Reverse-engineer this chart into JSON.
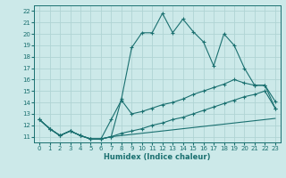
{
  "title": "",
  "xlabel": "Humidex (Indice chaleur)",
  "xlim": [
    -0.5,
    23.5
  ],
  "ylim": [
    10.5,
    22.5
  ],
  "xticks": [
    0,
    1,
    2,
    3,
    4,
    5,
    6,
    7,
    8,
    9,
    10,
    11,
    12,
    13,
    14,
    15,
    16,
    17,
    18,
    19,
    20,
    21,
    22,
    23
  ],
  "yticks": [
    11,
    12,
    13,
    14,
    15,
    16,
    17,
    18,
    19,
    20,
    21,
    22
  ],
  "bg_color": "#cce9e9",
  "grid_color": "#b0d4d4",
  "line_color": "#1a7070",
  "lines": [
    {
      "x": [
        0,
        1,
        2,
        3,
        4,
        5,
        6,
        7,
        8,
        9,
        10,
        11,
        12,
        13,
        14,
        15,
        16,
        17,
        18,
        19,
        20,
        21,
        22,
        23
      ],
      "y": [
        12.5,
        11.7,
        11.1,
        11.5,
        11.1,
        10.8,
        10.8,
        11.0,
        14.3,
        18.8,
        20.1,
        20.1,
        21.8,
        20.1,
        21.3,
        20.2,
        19.3,
        17.2,
        20.0,
        19.0,
        17.0,
        15.5,
        15.5,
        14.1
      ],
      "marker": true
    },
    {
      "x": [
        0,
        1,
        2,
        3,
        4,
        5,
        6,
        7,
        8,
        9,
        10,
        11,
        12,
        13,
        14,
        15,
        16,
        17,
        18,
        19,
        20,
        21,
        22,
        23
      ],
      "y": [
        12.5,
        11.7,
        11.1,
        11.5,
        11.1,
        10.8,
        10.8,
        12.5,
        14.2,
        13.0,
        13.2,
        13.5,
        13.8,
        14.0,
        14.3,
        14.7,
        15.0,
        15.3,
        15.6,
        16.0,
        15.7,
        15.5,
        15.5,
        13.5
      ],
      "marker": true
    },
    {
      "x": [
        0,
        1,
        2,
        3,
        4,
        5,
        6,
        7,
        8,
        9,
        10,
        11,
        12,
        13,
        14,
        15,
        16,
        17,
        18,
        19,
        20,
        21,
        22,
        23
      ],
      "y": [
        12.5,
        11.7,
        11.1,
        11.5,
        11.1,
        10.8,
        10.8,
        11.0,
        11.3,
        11.5,
        11.7,
        12.0,
        12.2,
        12.5,
        12.7,
        13.0,
        13.3,
        13.6,
        13.9,
        14.2,
        14.5,
        14.7,
        15.0,
        13.5
      ],
      "marker": true
    },
    {
      "x": [
        0,
        1,
        2,
        3,
        4,
        5,
        6,
        7,
        8,
        9,
        10,
        11,
        12,
        13,
        14,
        15,
        16,
        17,
        18,
        19,
        20,
        21,
        22,
        23
      ],
      "y": [
        12.5,
        11.7,
        11.1,
        11.5,
        11.1,
        10.8,
        10.8,
        11.0,
        11.1,
        11.2,
        11.3,
        11.4,
        11.5,
        11.6,
        11.7,
        11.8,
        11.9,
        12.0,
        12.1,
        12.2,
        12.3,
        12.4,
        12.5,
        12.6
      ],
      "marker": false
    }
  ]
}
